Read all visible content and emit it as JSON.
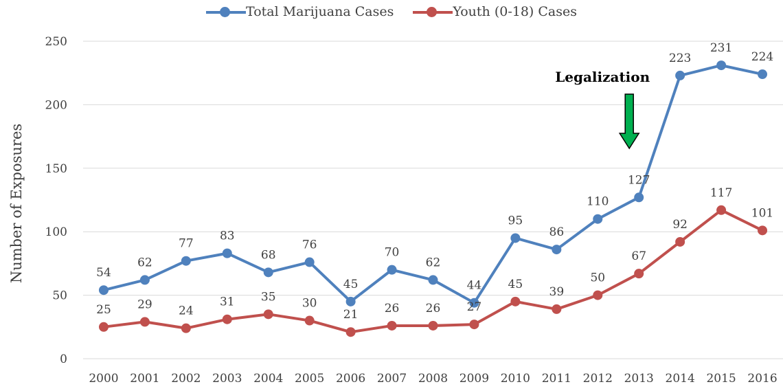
{
  "chart_data": {
    "type": "line",
    "x": [
      "2000",
      "2001",
      "2002",
      "2003",
      "2004",
      "2005",
      "2006",
      "2007",
      "2008",
      "2009",
      "2010",
      "2011",
      "2012",
      "2013",
      "2014",
      "2015",
      "2016"
    ],
    "series": [
      {
        "name": "Total Marijuana Cases",
        "color": "#4F81BD",
        "values": [
          54,
          62,
          77,
          83,
          68,
          76,
          45,
          70,
          62,
          44,
          95,
          86,
          110,
          127,
          223,
          231,
          224
        ]
      },
      {
        "name": "Youth (0-18) Cases",
        "color": "#C0504D",
        "values": [
          25,
          29,
          24,
          31,
          35,
          30,
          21,
          26,
          26,
          27,
          45,
          39,
          50,
          67,
          92,
          117,
          101
        ]
      }
    ],
    "ylabel": "Number of Exposures",
    "ylim": [
      0,
      250
    ],
    "yticks": [
      0,
      50,
      100,
      150,
      200,
      250
    ],
    "grid": true,
    "legend": "top",
    "annotation": {
      "text": "Legalization",
      "x": "2013",
      "arrow_color": "#00B050"
    }
  }
}
